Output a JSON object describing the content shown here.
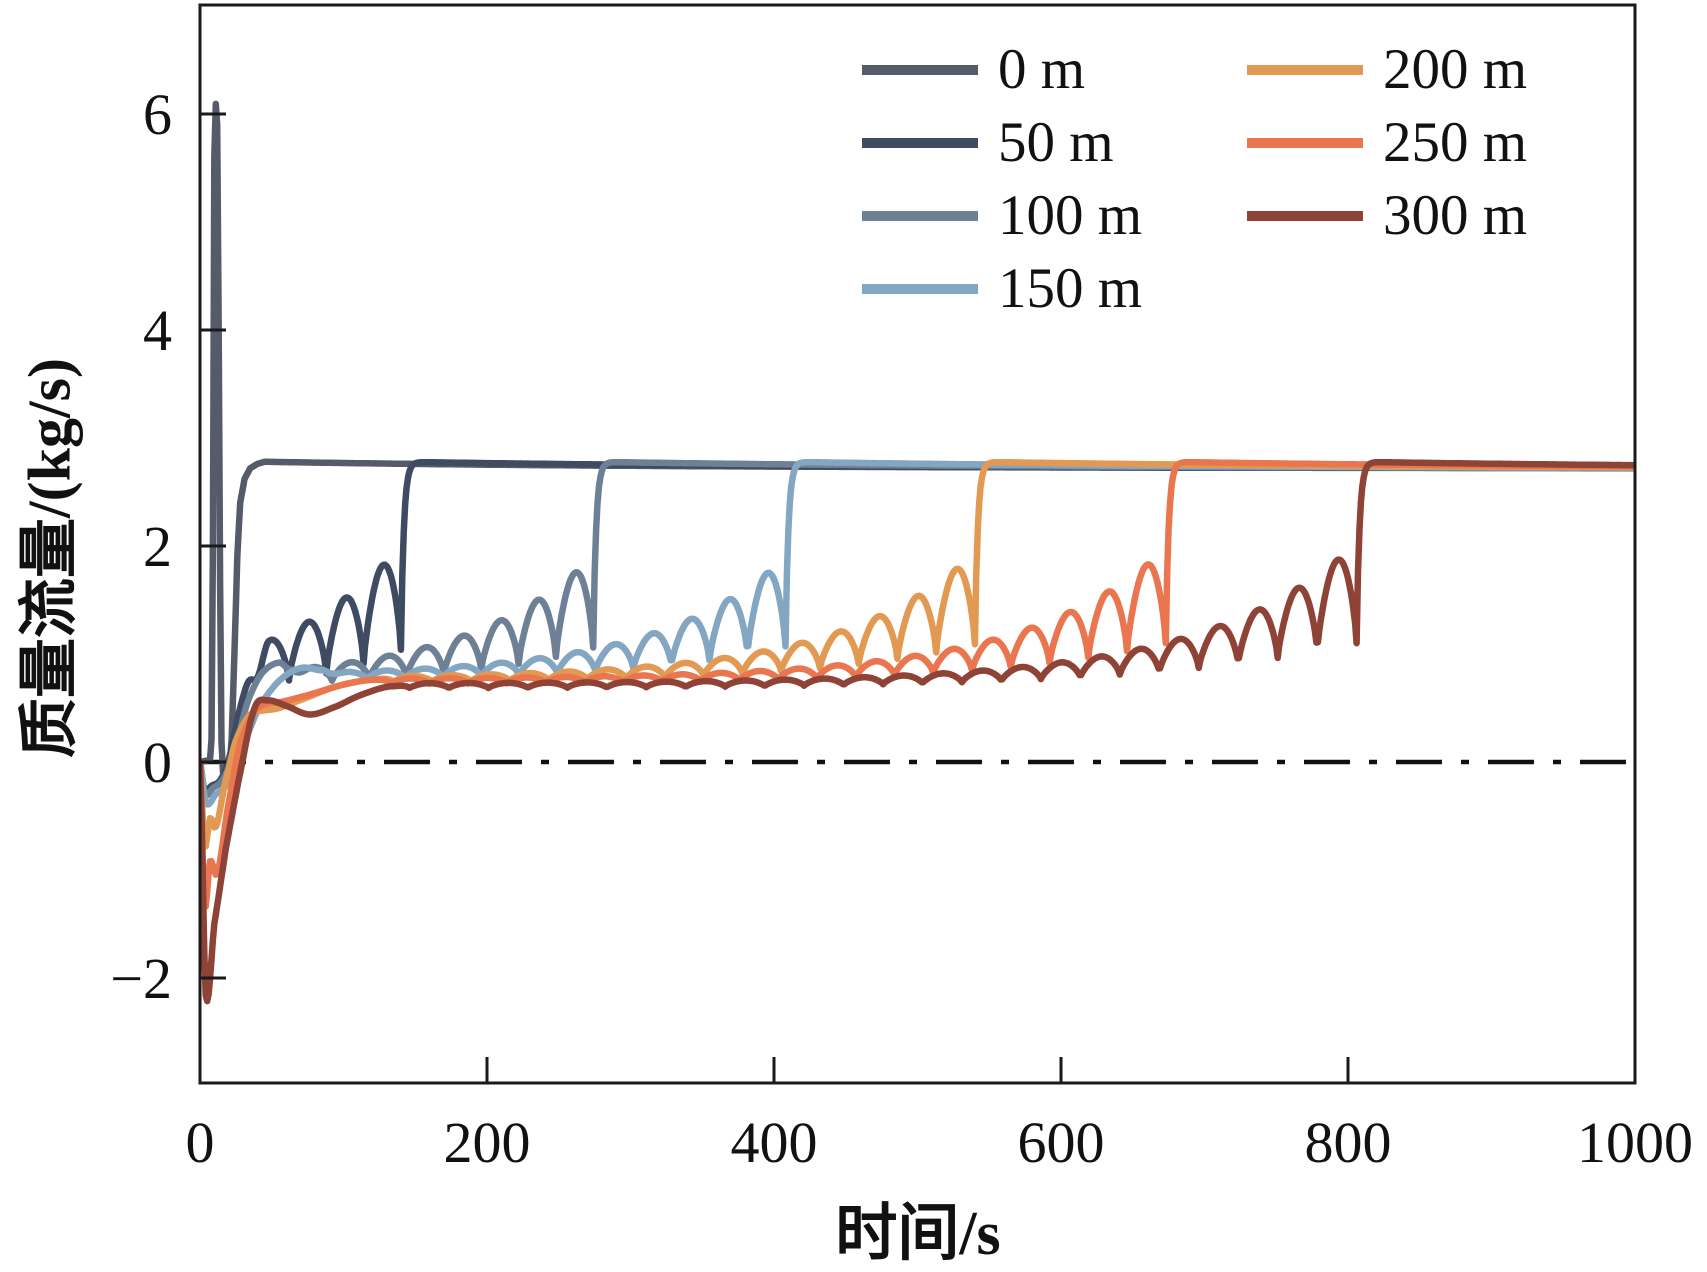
{
  "figure": {
    "background": "#ffffff",
    "axis_color": "#1a1a1a",
    "text_color": "#111111"
  },
  "axes": {
    "xlabel": "时间/s",
    "ylabel": "质量流量/(kg/s)",
    "x_ticks": [
      0,
      200,
      400,
      600,
      800,
      1000
    ],
    "y_ticks": [
      -2,
      0,
      2,
      4,
      6
    ],
    "xlim": [
      0,
      1000
    ],
    "ylim": [
      -2.97,
      7.01
    ],
    "zero_reference_line": true
  },
  "legend": {
    "items": [
      {
        "label": "0 m",
        "color": "#565b69"
      },
      {
        "label": "50 m",
        "color": "#3f4a63"
      },
      {
        "label": "100 m",
        "color": "#6e8096"
      },
      {
        "label": "150 m",
        "color": "#83a6c2"
      },
      {
        "label": "200 m",
        "color": "#e29a52"
      },
      {
        "label": "250 m",
        "color": "#e9764e"
      },
      {
        "label": "300 m",
        "color": "#8f4336"
      }
    ]
  },
  "chart_data": {
    "type": "line",
    "title": "",
    "xlabel": "时间/s",
    "ylabel": "质量流量/(kg/s)",
    "x_range": [
      0,
      1000
    ],
    "y_range": [
      -2.97,
      7.01
    ],
    "grid": false,
    "legend_position": "upper-center-right",
    "zero_line_style": "dash-dot",
    "steady_state_kg_s": 2.75,
    "end_value_kg_s": 2.73,
    "series": [
      {
        "name": "0 m",
        "color": "#565b69",
        "key_points": {
          "peak_kg_s": 6.1,
          "peak_time_s": 10,
          "post_peak_min_kg_s": -0.17,
          "jump_time_s": 20,
          "plateau_kg_s": 2.78,
          "end_value_kg_s": 2.72
        },
        "model": {
          "type": "spike",
          "plateau_from": 45,
          "anchors": [
            [
              0,
              0.0
            ],
            [
              7,
              0.02
            ],
            [
              8.5,
              0.3
            ],
            [
              9.3,
              3.0
            ],
            [
              10,
              5.6
            ],
            [
              10.6,
              6.08
            ],
            [
              11.2,
              6.1
            ],
            [
              12,
              5.9
            ],
            [
              12.8,
              4.5
            ],
            [
              13.6,
              2.5
            ],
            [
              14.4,
              0.8
            ],
            [
              15.2,
              -0.02
            ],
            [
              16.5,
              -0.14
            ],
            [
              18,
              -0.17
            ],
            [
              20,
              -0.15
            ],
            [
              22,
              0.2
            ],
            [
              24,
              1.0
            ],
            [
              26,
              1.9
            ],
            [
              28,
              2.4
            ],
            [
              31,
              2.62
            ],
            [
              35,
              2.72
            ],
            [
              40,
              2.76
            ],
            [
              45,
              2.78
            ]
          ]
        }
      },
      {
        "name": "50 m",
        "color": "#3f4a63",
        "key_points": {
          "initial_min_kg_s": -0.26,
          "min_time_s": 3,
          "baseline_kg_s": 0.8,
          "jump_time_s": 140,
          "plateau_kg_s": 2.78,
          "end_value_kg_s": 2.72
        },
        "model": {
          "type": "osc",
          "t_jump": 140,
          "t_osc": 36,
          "blend": 12,
          "anchors": [
            [
              0,
              0
            ],
            [
              3,
              -0.26
            ],
            [
              8,
              -0.22
            ],
            [
              14,
              -0.17
            ],
            [
              20,
              0.02
            ],
            [
              27,
              0.45
            ],
            [
              34,
              0.75
            ],
            [
              42,
              0.72
            ]
          ],
          "b0": 0.6,
          "b1": 1.04,
          "tau_b": 75,
          "A": 0.92,
          "tau_a": 95,
          "P": 26
        }
      },
      {
        "name": "100 m",
        "color": "#6e8096",
        "key_points": {
          "initial_min_kg_s": -0.3,
          "min_time_s": 3,
          "baseline_kg_s": 0.8,
          "jump_time_s": 274,
          "plateau_kg_s": 2.78,
          "end_value_kg_s": 2.72
        },
        "model": {
          "type": "osc",
          "t_jump": 274,
          "t_osc": 62,
          "blend": 14,
          "anchors": [
            [
              0,
              0
            ],
            [
              3,
              -0.3
            ],
            [
              9,
              -0.24
            ],
            [
              16,
              -0.16
            ],
            [
              24,
              0.1
            ],
            [
              33,
              0.55
            ],
            [
              43,
              0.82
            ],
            [
              55,
              0.92
            ],
            [
              62,
              0.86
            ]
          ],
          "b0": 0.7,
          "b1": 1.06,
          "tau_b": 95,
          "A": 0.8,
          "tau_a": 88,
          "P": 26
        }
      },
      {
        "name": "150 m",
        "color": "#83a6c2",
        "key_points": {
          "initial_min_kg_s": -0.38,
          "min_time_s": 4,
          "baseline_kg_s": 0.85,
          "jump_time_s": 408,
          "plateau_kg_s": 2.78,
          "end_value_kg_s": 2.72
        },
        "model": {
          "type": "osc",
          "t_jump": 408,
          "t_osc": 84,
          "blend": 16,
          "anchors": [
            [
              0,
              0
            ],
            [
              4,
              -0.38
            ],
            [
              11,
              -0.3
            ],
            [
              19,
              -0.2
            ],
            [
              29,
              0.12
            ],
            [
              41,
              0.5
            ],
            [
              55,
              0.75
            ],
            [
              70,
              0.87
            ],
            [
              84,
              0.85
            ]
          ],
          "b0": 0.75,
          "b1": 1.07,
          "tau_b": 105,
          "A": 0.78,
          "tau_a": 85,
          "P": 26.5
        }
      },
      {
        "name": "200 m",
        "color": "#e29a52",
        "key_points": {
          "initial_min_kg_s": -0.78,
          "min_time_s": 3,
          "baseline_kg_s": 0.75,
          "jump_time_s": 540,
          "plateau_kg_s": 2.78,
          "end_value_kg_s": 2.72
        },
        "model": {
          "type": "osc",
          "t_jump": 540,
          "t_osc": 118,
          "blend": 20,
          "anchors": [
            [
              0,
              0
            ],
            [
              3,
              -0.78
            ],
            [
              7,
              -0.52
            ],
            [
              11,
              -0.6
            ],
            [
              17,
              -0.22
            ],
            [
              25,
              0.2
            ],
            [
              35,
              0.44
            ],
            [
              55,
              0.5
            ],
            [
              75,
              0.6
            ],
            [
              95,
              0.7
            ],
            [
              118,
              0.76
            ]
          ],
          "b0": 0.73,
          "b1": 1.09,
          "tau_b": 115,
          "A": 0.8,
          "tau_a": 88,
          "P": 27
        }
      },
      {
        "name": "250 m",
        "color": "#e9764e",
        "key_points": {
          "initial_min_kg_s": -1.33,
          "min_time_s": 3,
          "baseline_kg_s": 0.75,
          "jump_time_s": 673,
          "plateau_kg_s": 2.78,
          "end_value_kg_s": 2.73
        },
        "model": {
          "type": "osc",
          "t_jump": 673,
          "t_osc": 118,
          "blend": 20,
          "anchors": [
            [
              0,
              0
            ],
            [
              3,
              -1.33
            ],
            [
              7,
              -0.92
            ],
            [
              12,
              -1.03
            ],
            [
              19,
              -0.45
            ],
            [
              28,
              0.18
            ],
            [
              40,
              0.5
            ],
            [
              58,
              0.56
            ],
            [
              78,
              0.63
            ],
            [
              98,
              0.71
            ],
            [
              118,
              0.76
            ]
          ],
          "b0": 0.72,
          "b1": 1.1,
          "tau_b": 125,
          "A": 0.83,
          "tau_a": 92,
          "P": 27
        }
      },
      {
        "name": "300 m",
        "color": "#8f4336",
        "key_points": {
          "initial_min_kg_s": -2.16,
          "min_time_s": 4,
          "baseline_kg_s": 0.72,
          "jump_time_s": 806,
          "plateau_kg_s": 2.77,
          "end_value_kg_s": 2.75
        },
        "model": {
          "type": "osc",
          "t_jump": 806,
          "t_osc": 132,
          "blend": 20,
          "anchors": [
            [
              0,
              0
            ],
            [
              4,
              -2.16
            ],
            [
              10,
              -1.5
            ],
            [
              18,
              -0.8
            ],
            [
              28,
              -0.1
            ],
            [
              38,
              0.5
            ],
            [
              47,
              0.57
            ],
            [
              60,
              0.52
            ],
            [
              76,
              0.44
            ],
            [
              92,
              0.5
            ],
            [
              112,
              0.62
            ],
            [
              132,
              0.7
            ]
          ],
          "b0": 0.68,
          "b1": 1.1,
          "tau_b": 140,
          "A": 0.88,
          "tau_a": 95,
          "P": 27.5
        }
      }
    ]
  }
}
